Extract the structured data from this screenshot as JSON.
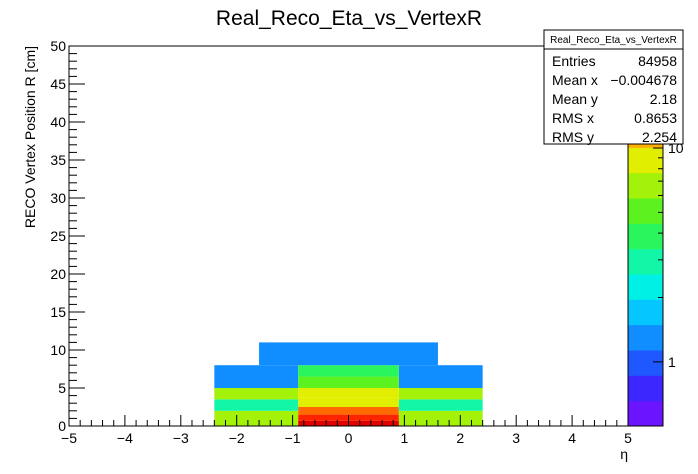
{
  "chart_data": {
    "type": "heatmap",
    "title": "Real_Reco_Eta_vs_VertexR",
    "xlabel": "η",
    "ylabel": "RECO Vertex Position R [cm]",
    "xlim": [
      -5,
      5
    ],
    "ylim": [
      0,
      50
    ],
    "x_ticks": [
      "−5",
      "−4",
      "−3",
      "−2",
      "−1",
      "0",
      "1",
      "2",
      "3",
      "4",
      "5"
    ],
    "y_ticks": [
      "0",
      "5",
      "10",
      "15",
      "20",
      "25",
      "30",
      "35",
      "40",
      "45",
      "50"
    ],
    "z_scale": "log",
    "z_ticks": [
      "1",
      "10"
    ],
    "z_tick_values": [
      1,
      10
    ],
    "z_max": 30,
    "cells": [
      {
        "x0": -2.4,
        "x1": -0.9,
        "y0": 0,
        "y1": 2,
        "z": 6
      },
      {
        "x0": 0.9,
        "x1": 2.4,
        "y0": 0,
        "y1": 2,
        "z": 6
      },
      {
        "x0": -2.4,
        "x1": -0.9,
        "y0": 2,
        "y1": 3.5,
        "z": 3
      },
      {
        "x0": 0.9,
        "x1": 2.4,
        "y0": 2,
        "y1": 3.5,
        "z": 3
      },
      {
        "x0": -2.4,
        "x1": -0.9,
        "y0": 3.5,
        "y1": 5,
        "z": 6
      },
      {
        "x0": 0.9,
        "x1": 2.4,
        "y0": 3.5,
        "y1": 5,
        "z": 6
      },
      {
        "x0": -2.4,
        "x1": -0.9,
        "y0": 5,
        "y1": 8,
        "z": 1.3
      },
      {
        "x0": 0.9,
        "x1": 2.4,
        "y0": 5,
        "y1": 8,
        "z": 1.3
      },
      {
        "x0": -0.9,
        "x1": 0.9,
        "y0": 0,
        "y1": 0.7,
        "z": 30
      },
      {
        "x0": -0.9,
        "x1": 0.9,
        "y0": 0.7,
        "y1": 1.5,
        "z": 20
      },
      {
        "x0": -0.9,
        "x1": 0.9,
        "y0": 1.5,
        "y1": 2.5,
        "z": 14
      },
      {
        "x0": -0.9,
        "x1": 0.9,
        "y0": 2.5,
        "y1": 3.7,
        "z": 10
      },
      {
        "x0": -0.9,
        "x1": 0.9,
        "y0": 3.7,
        "y1": 5,
        "z": 8
      },
      {
        "x0": -0.9,
        "x1": 0.9,
        "y0": 5,
        "y1": 6.5,
        "z": 4.5
      },
      {
        "x0": -0.9,
        "x1": 0.9,
        "y0": 6.5,
        "y1": 8,
        "z": 3.5
      },
      {
        "x0": -1.6,
        "x1": 1.6,
        "y0": 8,
        "y1": 11,
        "z": 1.2
      }
    ],
    "stats": {
      "title": "Real_Reco_Eta_vs_VertexR",
      "rows": [
        {
          "label": "Entries",
          "value": "84958"
        },
        {
          "label": "Mean x",
          "value": "−0.004678"
        },
        {
          "label": "Mean y",
          "value": "2.18"
        },
        {
          "label": "RMS x",
          "value": "0.8653"
        },
        {
          "label": "RMS y",
          "value": "2.254"
        }
      ]
    },
    "palette": [
      "#6a14ff",
      "#3c28ff",
      "#1f58ff",
      "#108eff",
      "#06c6ff",
      "#00f0e6",
      "#12f6a8",
      "#2bf55c",
      "#5cf21f",
      "#a4f20a",
      "#e1ee00",
      "#ffb000",
      "#ff6a00",
      "#ff2400",
      "#e00000"
    ]
  }
}
